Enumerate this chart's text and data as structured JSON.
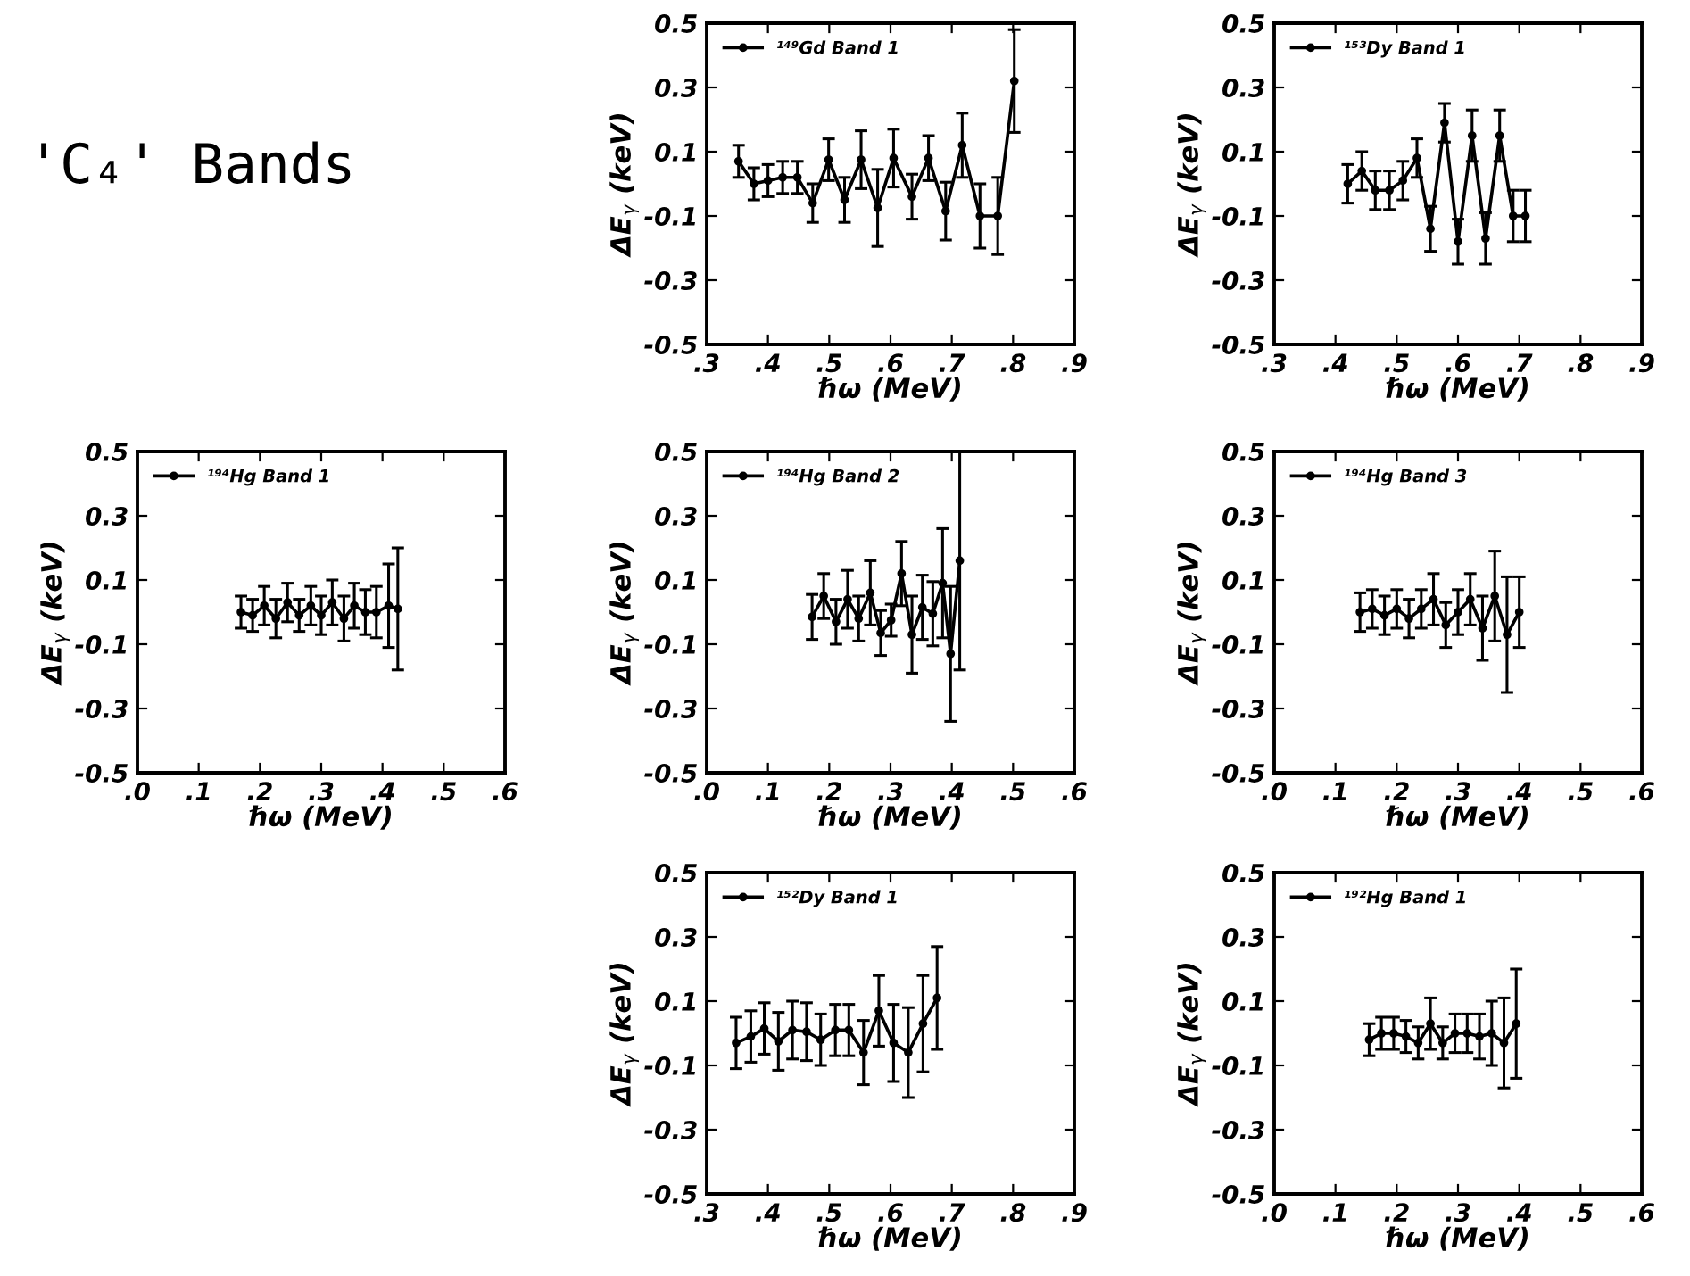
{
  "chart_data": [
    {
      "type": "other",
      "title": "'C₄' Bands"
    },
    {
      "type": "line",
      "marker": "circle",
      "legend": "top left",
      "xlabel": "ℏω (MeV)",
      "ylabel": "ΔE$_{γ}$ (keV)",
      "xlim": [
        0.3,
        0.9
      ],
      "xticks": [
        {
          "value": 0.3,
          "label": ".3"
        },
        {
          "value": 0.4,
          "label": ".4"
        },
        {
          "value": 0.5,
          "label": ".5"
        },
        {
          "value": 0.6,
          "label": ".6"
        },
        {
          "value": 0.7,
          "label": ".7"
        },
        {
          "value": 0.8,
          "label": ".8"
        },
        {
          "value": 0.9,
          "label": ".9"
        }
      ],
      "ylim": [
        -0.5,
        0.5
      ],
      "yticks": [
        -0.5,
        -0.3,
        -0.1,
        0.1,
        0.3,
        0.5
      ],
      "series": [
        {
          "name": "¹⁴⁹Gd Band 1",
          "color": "#000000",
          "x": [
            0.352,
            0.377,
            0.4,
            0.424,
            0.448,
            0.473,
            0.499,
            0.525,
            0.552,
            0.579,
            0.605,
            0.635,
            0.662,
            0.69,
            0.717,
            0.746,
            0.775,
            0.802
          ],
          "values": [
            0.07,
            0.0,
            0.01,
            0.02,
            0.02,
            -0.06,
            0.075,
            -0.05,
            0.075,
            -0.075,
            0.08,
            -0.04,
            0.08,
            -0.085,
            0.12,
            -0.1,
            -0.1,
            0.32
          ],
          "errors": [
            0.05,
            0.05,
            0.05,
            0.05,
            0.05,
            0.06,
            0.065,
            0.07,
            0.09,
            0.12,
            0.09,
            0.07,
            0.07,
            0.09,
            0.1,
            0.1,
            0.12,
            0.16
          ]
        }
      ]
    },
    {
      "type": "line",
      "marker": "circle",
      "legend": "top left",
      "xlabel": "ℏω (MeV)",
      "ylabel": "ΔE$_{γ}$ (keV)",
      "xlim": [
        0.3,
        0.9
      ],
      "xticks": [
        {
          "value": 0.3,
          "label": ".3"
        },
        {
          "value": 0.4,
          "label": ".4"
        },
        {
          "value": 0.5,
          "label": ".5"
        },
        {
          "value": 0.6,
          "label": ".6"
        },
        {
          "value": 0.7,
          "label": ".7"
        },
        {
          "value": 0.8,
          "label": ".8"
        },
        {
          "value": 0.9,
          "label": ".9"
        }
      ],
      "ylim": [
        -0.5,
        0.5
      ],
      "yticks": [
        -0.5,
        -0.3,
        -0.1,
        0.1,
        0.3,
        0.5
      ],
      "series": [
        {
          "name": "¹⁵³Dy Band 1",
          "color": "#000000",
          "x": [
            0.42,
            0.443,
            0.465,
            0.488,
            0.51,
            0.533,
            0.555,
            0.578,
            0.6,
            0.623,
            0.645,
            0.668,
            0.69,
            0.71
          ],
          "values": [
            0.0,
            0.04,
            -0.02,
            -0.02,
            0.01,
            0.08,
            -0.14,
            0.19,
            -0.18,
            0.15,
            -0.17,
            0.15,
            -0.1,
            -0.1
          ],
          "errors": [
            0.06,
            0.06,
            0.06,
            0.06,
            0.06,
            0.06,
            0.07,
            0.06,
            0.07,
            0.08,
            0.08,
            0.08,
            0.08,
            0.08
          ]
        }
      ]
    },
    {
      "type": "line",
      "marker": "circle",
      "legend": "top left",
      "xlabel": "ℏω (MeV)",
      "ylabel": "ΔE$_{γ}$ (keV)",
      "xlim": [
        0.0,
        0.6
      ],
      "xticks": [
        {
          "value": 0.0,
          "label": ".0"
        },
        {
          "value": 0.1,
          "label": ".1"
        },
        {
          "value": 0.2,
          "label": ".2"
        },
        {
          "value": 0.3,
          "label": ".3"
        },
        {
          "value": 0.4,
          "label": ".4"
        },
        {
          "value": 0.5,
          "label": ".5"
        },
        {
          "value": 0.6,
          "label": ".6"
        }
      ],
      "ylim": [
        -0.5,
        0.5
      ],
      "yticks": [
        -0.5,
        -0.3,
        -0.1,
        0.1,
        0.3,
        0.5
      ],
      "series": [
        {
          "name": "¹⁹⁴Hg Band 1",
          "color": "#000000",
          "x": [
            0.169,
            0.188,
            0.207,
            0.226,
            0.245,
            0.264,
            0.283,
            0.3,
            0.318,
            0.337,
            0.354,
            0.372,
            0.39,
            0.41,
            0.425
          ],
          "values": [
            0.0,
            -0.01,
            0.02,
            -0.02,
            0.03,
            -0.01,
            0.02,
            -0.01,
            0.03,
            -0.02,
            0.02,
            0.0,
            0.0,
            0.02,
            0.01
          ],
          "errors": [
            0.05,
            0.05,
            0.06,
            0.06,
            0.06,
            0.05,
            0.06,
            0.06,
            0.07,
            0.07,
            0.07,
            0.07,
            0.08,
            0.13,
            0.19
          ]
        }
      ]
    },
    {
      "type": "line",
      "marker": "circle",
      "legend": "top left",
      "xlabel": "ℏω (MeV)",
      "ylabel": "ΔE$_{γ}$ (keV)",
      "xlim": [
        0.0,
        0.6
      ],
      "xticks": [
        {
          "value": 0.0,
          "label": ".0"
        },
        {
          "value": 0.1,
          "label": ".1"
        },
        {
          "value": 0.2,
          "label": ".2"
        },
        {
          "value": 0.3,
          "label": ".3"
        },
        {
          "value": 0.4,
          "label": ".4"
        },
        {
          "value": 0.5,
          "label": ".5"
        },
        {
          "value": 0.6,
          "label": ".6"
        }
      ],
      "ylim": [
        -0.5,
        0.5
      ],
      "yticks": [
        -0.5,
        -0.3,
        -0.1,
        0.1,
        0.3,
        0.5
      ],
      "series": [
        {
          "name": "¹⁹⁴Hg Band 2",
          "color": "#000000",
          "x": [
            0.172,
            0.191,
            0.211,
            0.23,
            0.248,
            0.267,
            0.284,
            0.301,
            0.318,
            0.335,
            0.352,
            0.369,
            0.385,
            0.398,
            0.413
          ],
          "values": [
            -0.015,
            0.05,
            -0.03,
            0.04,
            -0.02,
            0.06,
            -0.065,
            -0.025,
            0.12,
            -0.07,
            0.015,
            -0.005,
            0.09,
            -0.13,
            0.16
          ],
          "errors": [
            0.07,
            0.07,
            0.07,
            0.09,
            0.07,
            0.1,
            0.07,
            0.05,
            0.1,
            0.12,
            0.1,
            0.1,
            0.17,
            0.21,
            0.34
          ]
        }
      ]
    },
    {
      "type": "line",
      "marker": "circle",
      "legend": "top left",
      "xlabel": "ℏω (MeV)",
      "ylabel": "ΔE$_{γ}$ (keV)",
      "xlim": [
        0.0,
        0.6
      ],
      "xticks": [
        {
          "value": 0.0,
          "label": ".0"
        },
        {
          "value": 0.1,
          "label": ".1"
        },
        {
          "value": 0.2,
          "label": ".2"
        },
        {
          "value": 0.3,
          "label": ".3"
        },
        {
          "value": 0.4,
          "label": ".4"
        },
        {
          "value": 0.5,
          "label": ".5"
        },
        {
          "value": 0.6,
          "label": ".6"
        }
      ],
      "ylim": [
        -0.5,
        0.5
      ],
      "yticks": [
        -0.5,
        -0.3,
        -0.1,
        0.1,
        0.3,
        0.5
      ],
      "series": [
        {
          "name": "¹⁹⁴Hg Band 3",
          "color": "#000000",
          "x": [
            0.14,
            0.16,
            0.18,
            0.2,
            0.22,
            0.24,
            0.26,
            0.28,
            0.3,
            0.32,
            0.34,
            0.36,
            0.38,
            0.4
          ],
          "values": [
            0.0,
            0.01,
            -0.01,
            0.01,
            -0.02,
            0.01,
            0.04,
            -0.04,
            0.0,
            0.04,
            -0.05,
            0.05,
            -0.07,
            0.0
          ],
          "errors": [
            0.06,
            0.06,
            0.06,
            0.06,
            0.06,
            0.06,
            0.08,
            0.07,
            0.07,
            0.08,
            0.1,
            0.14,
            0.18,
            0.11
          ]
        }
      ]
    },
    {
      "type": "line",
      "marker": "circle",
      "legend": "top left",
      "xlabel": "ℏω (MeV)",
      "ylabel": "ΔE$_{γ}$ (keV)",
      "xlim": [
        0.3,
        0.9
      ],
      "xticks": [
        {
          "value": 0.3,
          "label": ".3"
        },
        {
          "value": 0.4,
          "label": ".4"
        },
        {
          "value": 0.5,
          "label": ".5"
        },
        {
          "value": 0.6,
          "label": ".6"
        },
        {
          "value": 0.7,
          "label": ".7"
        },
        {
          "value": 0.8,
          "label": ".8"
        },
        {
          "value": 0.9,
          "label": ".9"
        }
      ],
      "ylim": [
        -0.5,
        0.5
      ],
      "yticks": [
        -0.5,
        -0.3,
        -0.1,
        0.1,
        0.3,
        0.5
      ],
      "series": [
        {
          "name": "¹⁵²Dy Band 1",
          "color": "#000000",
          "x": [
            0.348,
            0.372,
            0.394,
            0.417,
            0.44,
            0.463,
            0.486,
            0.51,
            0.532,
            0.556,
            0.581,
            0.605,
            0.629,
            0.653,
            0.676
          ],
          "values": [
            -0.03,
            -0.01,
            0.015,
            -0.025,
            0.01,
            0.005,
            -0.02,
            0.01,
            0.01,
            -0.06,
            0.07,
            -0.03,
            -0.06,
            0.03,
            0.11
          ],
          "errors": [
            0.08,
            0.08,
            0.08,
            0.09,
            0.09,
            0.09,
            0.08,
            0.08,
            0.08,
            0.1,
            0.11,
            0.12,
            0.14,
            0.15,
            0.16
          ]
        }
      ]
    },
    {
      "type": "line",
      "marker": "circle",
      "legend": "top left",
      "xlabel": "ℏω (MeV)",
      "ylabel": "ΔE$_{γ}$ (keV)",
      "xlim": [
        0.0,
        0.6
      ],
      "xticks": [
        {
          "value": 0.0,
          "label": ".0"
        },
        {
          "value": 0.1,
          "label": ".1"
        },
        {
          "value": 0.2,
          "label": ".2"
        },
        {
          "value": 0.3,
          "label": ".3"
        },
        {
          "value": 0.4,
          "label": ".4"
        },
        {
          "value": 0.5,
          "label": ".5"
        },
        {
          "value": 0.6,
          "label": ".6"
        }
      ],
      "ylim": [
        -0.5,
        0.5
      ],
      "yticks": [
        -0.5,
        -0.3,
        -0.1,
        0.1,
        0.3,
        0.5
      ],
      "series": [
        {
          "name": "¹⁹²Hg Band 1",
          "color": "#000000",
          "x": [
            0.155,
            0.175,
            0.195,
            0.215,
            0.235,
            0.255,
            0.275,
            0.295,
            0.315,
            0.335,
            0.355,
            0.375,
            0.395
          ],
          "values": [
            -0.02,
            0.0,
            0.0,
            -0.01,
            -0.03,
            0.03,
            -0.03,
            0.0,
            0.0,
            -0.01,
            0.0,
            -0.03,
            0.03
          ],
          "errors": [
            0.05,
            0.05,
            0.05,
            0.05,
            0.05,
            0.08,
            0.05,
            0.06,
            0.06,
            0.07,
            0.1,
            0.14,
            0.17
          ]
        }
      ]
    }
  ]
}
